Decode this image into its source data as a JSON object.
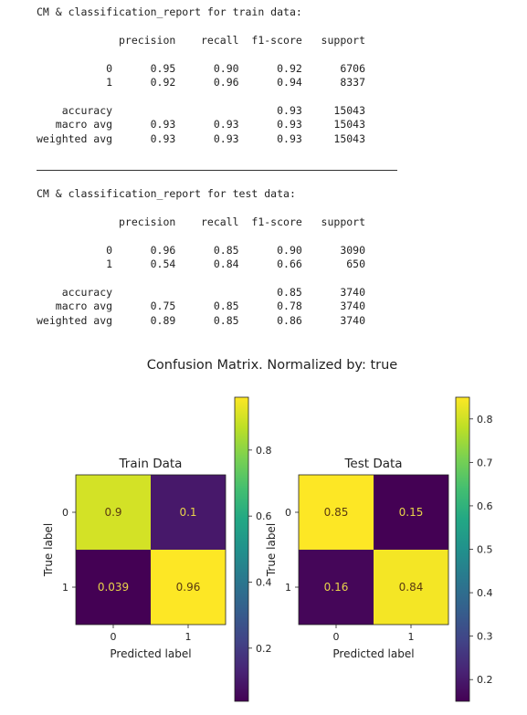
{
  "report": {
    "train": {
      "title": "CM & classification_report for train data:",
      "columns": [
        "precision",
        "recall",
        "f1-score",
        "support"
      ],
      "rows": [
        {
          "label": "0",
          "precision": "0.95",
          "recall": "0.90",
          "f1": "0.92",
          "support": "6706"
        },
        {
          "label": "1",
          "precision": "0.92",
          "recall": "0.96",
          "f1": "0.94",
          "support": "8337"
        }
      ],
      "summary": [
        {
          "label": "accuracy",
          "precision": "",
          "recall": "",
          "f1": "0.93",
          "support": "15043"
        },
        {
          "label": "macro avg",
          "precision": "0.93",
          "recall": "0.93",
          "f1": "0.93",
          "support": "15043"
        },
        {
          "label": "weighted avg",
          "precision": "0.93",
          "recall": "0.93",
          "f1": "0.93",
          "support": "15043"
        }
      ]
    },
    "test": {
      "title": "CM & classification_report for test data:",
      "columns": [
        "precision",
        "recall",
        "f1-score",
        "support"
      ],
      "rows": [
        {
          "label": "0",
          "precision": "0.96",
          "recall": "0.85",
          "f1": "0.90",
          "support": "3090"
        },
        {
          "label": "1",
          "precision": "0.54",
          "recall": "0.84",
          "f1": "0.66",
          "support": "650"
        }
      ],
      "summary": [
        {
          "label": "accuracy",
          "precision": "",
          "recall": "",
          "f1": "0.85",
          "support": "3740"
        },
        {
          "label": "macro avg",
          "precision": "0.75",
          "recall": "0.85",
          "f1": "0.78",
          "support": "3740"
        },
        {
          "label": "weighted avg",
          "precision": "0.89",
          "recall": "0.85",
          "f1": "0.86",
          "support": "3740"
        }
      ]
    }
  },
  "chart_data": {
    "type": "heatmap",
    "suptitle": "Confusion Matrix. Normalized by: true",
    "colormap": "viridis",
    "panels": [
      {
        "title": "Train Data",
        "xlabel": "Predicted label",
        "ylabel": "True label",
        "x_categories": [
          "0",
          "1"
        ],
        "y_categories": [
          "0",
          "1"
        ],
        "matrix": [
          [
            0.9,
            0.1
          ],
          [
            0.039,
            0.96
          ]
        ],
        "cell_labels": [
          [
            "0.9",
            "0.1"
          ],
          [
            "0.039",
            "0.96"
          ]
        ],
        "colorbar": {
          "range": [
            0.039,
            0.96
          ],
          "ticks": [
            0.2,
            0.4,
            0.6,
            0.8
          ]
        }
      },
      {
        "title": "Test Data",
        "xlabel": "Predicted label",
        "ylabel": "True label",
        "x_categories": [
          "0",
          "1"
        ],
        "y_categories": [
          "0",
          "1"
        ],
        "matrix": [
          [
            0.85,
            0.15
          ],
          [
            0.16,
            0.84
          ]
        ],
        "cell_labels": [
          [
            "0.85",
            "0.15"
          ],
          [
            "0.16",
            "0.84"
          ]
        ],
        "colorbar": {
          "range": [
            0.15,
            0.85
          ],
          "ticks": [
            0.2,
            0.3,
            0.4,
            0.5,
            0.6,
            0.7,
            0.8
          ]
        }
      }
    ]
  }
}
